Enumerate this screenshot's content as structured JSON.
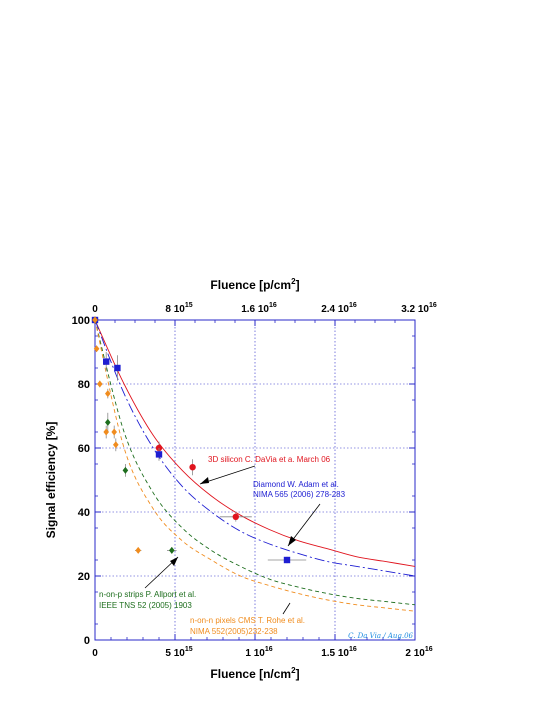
{
  "chart_data": {
    "type": "scatter",
    "title": "",
    "xlabel_bottom": "Fluence [n/cm",
    "xlabel_bottom_sup": "2",
    "xlabel_bottom_end": "]",
    "xlabel_top": "Fluence [p/cm",
    "xlabel_top_sup": "2",
    "xlabel_top_end": "]",
    "ylabel": "Signal efficiency [%]",
    "xlim": [
      0,
      2e+16
    ],
    "ylim": [
      0,
      100
    ],
    "bottom_ticks": [
      {
        "value": 0,
        "base": "0",
        "exp": ""
      },
      {
        "value": 5000000000000000.0,
        "base": "5 10",
        "exp": "15"
      },
      {
        "value": 1e+16,
        "base": "1 10",
        "exp": "16"
      },
      {
        "value": 1.5e+16,
        "base": "1.5 10",
        "exp": "16"
      },
      {
        "value": 2e+16,
        "base": "2 10",
        "exp": "16"
      }
    ],
    "top_xlim": [
      0,
      3.2e+16
    ],
    "top_ticks": [
      {
        "value": 0,
        "base": "0",
        "exp": ""
      },
      {
        "value": 8000000000000000.0,
        "base": "8 10",
        "exp": "15"
      },
      {
        "value": 1.6e+16,
        "base": "1.6 10",
        "exp": "16"
      },
      {
        "value": 2.4e+16,
        "base": "2.4 10",
        "exp": "16"
      },
      {
        "value": 3.2e+16,
        "base": "3.2 10",
        "exp": "16"
      }
    ],
    "y_ticks": [
      0,
      20,
      40,
      60,
      80,
      100
    ],
    "grid": true,
    "signature": "C. Da Via / Aug.06",
    "series": [
      {
        "name": "3D silicon C. DaVia et a. March 06",
        "color": "#e0141e",
        "marker": "circle",
        "points": [
          {
            "x": 0,
            "y": 100,
            "xerr": 0,
            "yerr": 0
          },
          {
            "x": 4000000000000000.0,
            "y": 60,
            "xerr": 0,
            "yerr": 2
          },
          {
            "x": 6100000000000000.0,
            "y": 54,
            "xerr": 0,
            "yerr": 2.5
          },
          {
            "x": 8800000000000000.0,
            "y": 38.5,
            "xerr": 1000000000000000.0,
            "yerr": 1.5
          }
        ],
        "fit": [
          100,
          80,
          64,
          53,
          45,
          39,
          34.5,
          31,
          28.5,
          26,
          24.5,
          23
        ]
      },
      {
        "name": "Diamond W. Adam et al. NIMA 565 (2006) 278-283",
        "color": "#1e1ed2",
        "marker": "square",
        "points": [
          {
            "x": 0,
            "y": 100,
            "xerr": 0,
            "yerr": 0
          },
          {
            "x": 700000000000000.0,
            "y": 87,
            "xerr": 0,
            "yerr": 3
          },
          {
            "x": 1400000000000000.0,
            "y": 85,
            "xerr": 0,
            "yerr": 4
          },
          {
            "x": 4000000000000000.0,
            "y": 58,
            "xerr": 0,
            "yerr": 2
          },
          {
            "x": 1.2e+16,
            "y": 25,
            "xerr": 1200000000000000.0,
            "yerr": 1
          }
        ],
        "fit": [
          100,
          77,
          60,
          48,
          40,
          34,
          30,
          27,
          24.5,
          23,
          21.5,
          20
        ]
      },
      {
        "name": "n-on-p strips P. Allport et al. IEEE TNS 52 (2005) 1903",
        "color": "#1e6e1e",
        "marker": "diamond",
        "points": [
          {
            "x": 0,
            "y": 100,
            "xerr": 0,
            "yerr": 0
          },
          {
            "x": 800000000000000.0,
            "y": 68,
            "xerr": 0,
            "yerr": 3
          },
          {
            "x": 1900000000000000.0,
            "y": 53,
            "xerr": 0,
            "yerr": 2
          },
          {
            "x": 4800000000000000.0,
            "y": 28,
            "xerr": 300000000000000.0,
            "yerr": 1
          }
        ],
        "fit": [
          100,
          65,
          46,
          35,
          28,
          23,
          19,
          16.5,
          14.5,
          13,
          12,
          11
        ]
      },
      {
        "name": "n-on-n pixels CMS T. Rohe et al. NIMA 552(2005)232-238",
        "color": "#f08c1e",
        "marker": "diamond",
        "points": [
          {
            "x": 0,
            "y": 100,
            "xerr": 0,
            "yerr": 0
          },
          {
            "x": 100000000000000.0,
            "y": 91,
            "xerr": 0,
            "yerr": 1
          },
          {
            "x": 300000000000000.0,
            "y": 80,
            "xerr": 0,
            "yerr": 1
          },
          {
            "x": 800000000000000.0,
            "y": 77,
            "xerr": 0,
            "yerr": 1.5
          },
          {
            "x": 700000000000000.0,
            "y": 65,
            "xerr": 0,
            "yerr": 2
          },
          {
            "x": 1200000000000000.0,
            "y": 65,
            "xerr": 0,
            "yerr": 2
          },
          {
            "x": 1300000000000000.0,
            "y": 61,
            "xerr": 0,
            "yerr": 2
          },
          {
            "x": 2700000000000000.0,
            "y": 28,
            "xerr": 200000000000000.0,
            "yerr": 0
          }
        ],
        "fit": [
          100,
          60,
          41,
          31,
          25,
          20,
          17,
          14.5,
          12.5,
          11,
          10,
          9
        ]
      }
    ],
    "labels": {
      "red": "3D silicon C. DaVia et a. March 06",
      "blue_1": "Diamond W. Adam et al.",
      "blue_2": "NIMA 565 (2006) 278-283",
      "green_1": "n-on-p strips P. Allport et al.",
      "green_2": "IEEE TNS 52 (2005) 1903",
      "orange_1": "n-on-n pixels CMS T. Rohe et al.",
      "orange_2": "NIMA 552(2005)232-238"
    }
  }
}
